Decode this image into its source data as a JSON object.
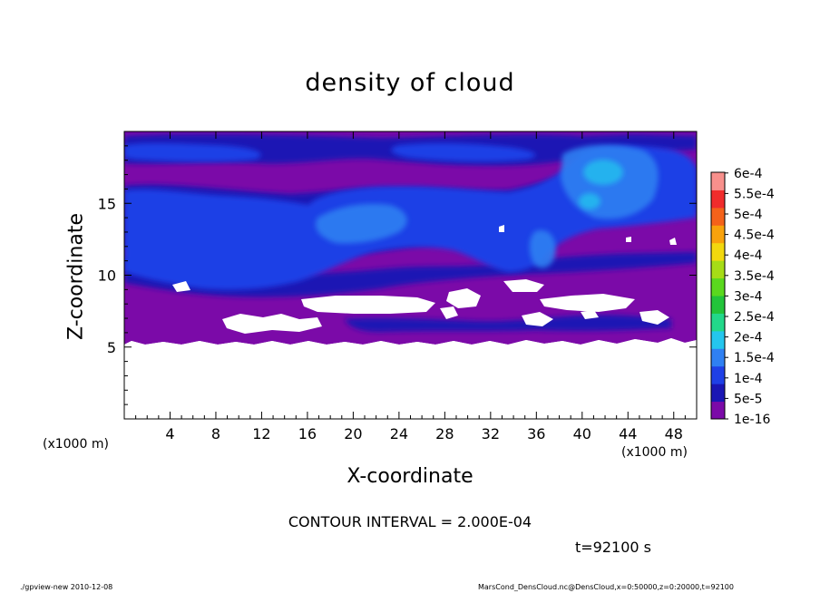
{
  "chart_data": {
    "type": "heatmap",
    "title": "density of cloud",
    "xlabel": "X-coordinate",
    "ylabel": "Z-coordinate",
    "x_unit_label": "(x1000 m)",
    "z_unit_label": "(x1000 m)",
    "xlim": [
      0,
      50
    ],
    "ylim": [
      0,
      20
    ],
    "x_ticks": [
      4,
      8,
      12,
      16,
      20,
      24,
      28,
      32,
      36,
      40,
      44,
      48
    ],
    "y_ticks": [
      5,
      10,
      15
    ],
    "colorbar": {
      "levels": [
        "1e-16",
        "5e-5",
        "1e-4",
        "1.5e-4",
        "2e-4",
        "2.5e-4",
        "3e-4",
        "3.5e-4",
        "4e-4",
        "4.5e-4",
        "5e-4",
        "5.5e-4",
        "6e-4"
      ],
      "colors": [
        "#7b0aa8",
        "#1a16b4",
        "#1f40e6",
        "#2f80f2",
        "#24c6ee",
        "#22d88a",
        "#22c43a",
        "#5ad81e",
        "#a6dc16",
        "#f2d80e",
        "#f8a20c",
        "#f4621a",
        "#f02c2c",
        "#f8908c"
      ]
    },
    "annotations": {
      "contour_interval": "CONTOUR INTERVAL = 2.000E-04",
      "time": "t=92100 s"
    }
  },
  "footer": {
    "left": "./gpview-new  2010-12-08",
    "right": "MarsCond_DensCloud.nc@DensCloud,x=0:50000,z=0:20000,t=92100"
  }
}
